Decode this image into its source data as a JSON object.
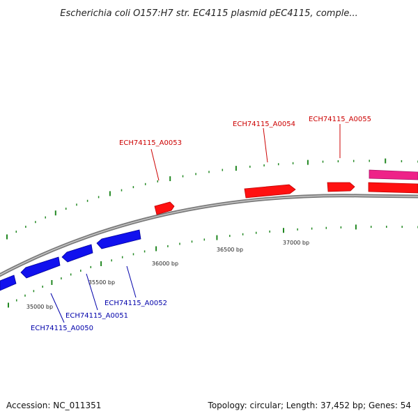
{
  "title": "Escherichia coli O157:H7 str. EC4115 plasmid pEC4115, comple...",
  "footer": {
    "accession": "Accession: NC_011351",
    "topology": "Topology: circular; Length: 37,452 bp; Genes: 54"
  },
  "colors": {
    "forward_gene": "#ff0000",
    "reverse_gene": "#0000ee",
    "highlight_gene": "#ee2288",
    "forward_label": "#cc0000",
    "reverse_label": "#0000aa",
    "tick": "#228822",
    "backbone": "#888888"
  },
  "scale_labels": [
    "35000 bp",
    "35500 bp",
    "36000 bp",
    "36500 bp",
    "37000 bp"
  ],
  "genes": {
    "forward": [
      {
        "name": "ECH74115_A0053"
      },
      {
        "name": "ECH74115_A0054"
      },
      {
        "name": "ECH74115_A0055"
      }
    ],
    "reverse": [
      {
        "name": "ECH74115_A0050"
      },
      {
        "name": "ECH74115_A0051"
      },
      {
        "name": "ECH74115_A0052"
      }
    ]
  }
}
